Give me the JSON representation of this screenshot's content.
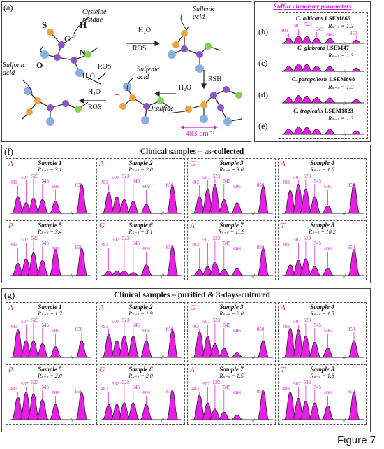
{
  "panel_a": {
    "tag": "(a)",
    "labels": {
      "cysteine": "Cysteine residue",
      "atom_s": "S",
      "atom_h": "H",
      "atom_c": "C",
      "atom_n": "N",
      "atom_o": "O",
      "sulfenic1": "Sulfenic acid",
      "sulfenic2": "Sulfenic acid",
      "sulfonic": "Sulfonic acid",
      "disulfide": "Disulfide",
      "h2o_1": "H₂O",
      "ros_1": "ROS",
      "ros_2": "ROS",
      "h2o_2": "H₂O",
      "h2o_3": "H₂O",
      "ros_3": "ROS",
      "rsh": "RSH",
      "h2o_4": "H₂O",
      "wavenumber": "483 cm⁻¹",
      "minus1": "−",
      "minus2": "−"
    }
  },
  "panel_right": {
    "title": "Sulfur chemistry parameters",
    "species": [
      {
        "tag": "(b)",
        "name_it": "C. albicans",
        "name_rest": " LSEM865",
        "rss": "Rₛ₋ₛ = 1.3"
      },
      {
        "tag": "(c)",
        "name_it": "C. glabrata",
        "name_rest": " LSEM47",
        "rss": "Rₛ₋ₛ = 1.3"
      },
      {
        "tag": "(d)",
        "name_it": "C. parapsilosis",
        "name_rest": " LSEM868",
        "rss": "Rₛ₋ₛ = 1.3"
      },
      {
        "tag": "(e)",
        "name_it": "C. tropicalis",
        "name_rest": " LSEM1823",
        "rss": "Rₛ₋ₛ = 1.3"
      }
    ],
    "peak_labels": [
      "483",
      "507",
      "523",
      "545",
      "606",
      "850"
    ]
  },
  "panel_f": {
    "tag": "(f)",
    "title": "Clinical samples – as-collected",
    "samples": [
      {
        "letter": "A",
        "name": "Sample 1",
        "rss": "Rₛ₋ₛ = 3.1",
        "h": [
          0.55,
          0.35,
          0.5,
          0.45,
          0.4,
          0.95
        ]
      },
      {
        "letter": "A",
        "name": "Sample 2",
        "rss": "Rₛ₋ₛ = 2.0",
        "h": [
          0.7,
          0.55,
          0.45,
          0.4,
          0.3,
          0.9
        ]
      },
      {
        "letter": "G",
        "name": "Sample 3",
        "rss": "Rₛ₋ₛ = 3.8",
        "h": [
          0.55,
          0.8,
          0.95,
          0.45,
          0.35,
          0.9
        ]
      },
      {
        "letter": "A",
        "name": "Sample 4",
        "rss": "Rₛ₋ₛ = 1.6",
        "h": [
          0.75,
          0.95,
          0.8,
          0.55,
          0.25,
          0.95
        ]
      },
      {
        "letter": "P",
        "name": "Sample 5",
        "rss": "Rₛ₋ₛ = 3.4",
        "h": [
          0.4,
          0.55,
          0.75,
          0.5,
          0.85,
          0.9
        ]
      },
      {
        "letter": "G",
        "name": "Sample 6",
        "rss": "Rₛ₋ₛ = 3.1",
        "h": [
          0.15,
          0.15,
          0.15,
          0.1,
          0.35,
          0.95
        ]
      },
      {
        "letter": "A",
        "name": "Sample 7",
        "rss": "Rₛ₋ₛ = 11.9",
        "h": [
          0.2,
          0.3,
          0.45,
          0.2,
          0.25,
          0.9
        ]
      },
      {
        "letter": "T",
        "name": "Sample 8",
        "rss": "Rₛ₋ₛ = 10.2",
        "h": [
          0.35,
          0.5,
          0.55,
          0.3,
          0.25,
          0.85
        ]
      }
    ],
    "peak_labels": [
      "483",
      "507",
      "523",
      "545",
      "606",
      "850"
    ]
  },
  "panel_g": {
    "tag": "(g)",
    "title": "Clinical samples – purified & 3-days-cultured",
    "samples": [
      {
        "letter": "A",
        "name": "Sample 1",
        "rss": "Rₛ₋ₛ = 1.7",
        "h": [
          0.9,
          0.55,
          0.55,
          0.45,
          0.35,
          0.55
        ]
      },
      {
        "letter": "A",
        "name": "Sample 2",
        "rss": "Rₛ₋ₛ = 1.9",
        "h": [
          0.75,
          0.55,
          0.7,
          0.7,
          0.55,
          0.9
        ]
      },
      {
        "letter": "G",
        "name": "Sample 3",
        "rss": "Rₛ₋ₛ = 2.0",
        "h": [
          0.85,
          0.7,
          0.45,
          0.3,
          0.15,
          0.55
        ]
      },
      {
        "letter": "A",
        "name": "Sample 4",
        "rss": "Rₛ₋ₛ = 1.5",
        "h": [
          0.95,
          0.9,
          0.7,
          0.5,
          0.3,
          0.55
        ]
      },
      {
        "letter": "P",
        "name": "Sample 5",
        "rss": "Rₛ₋ₛ = 2.0",
        "h": [
          0.75,
          0.9,
          0.85,
          0.65,
          0.5,
          0.9
        ]
      },
      {
        "letter": "G",
        "name": "Sample 6",
        "rss": "Rₛ₋ₛ = 2.0",
        "h": [
          0.5,
          0.5,
          0.55,
          0.55,
          0.5,
          0.95
        ]
      },
      {
        "letter": "A",
        "name": "Sample 7",
        "rss": "Rₛ₋ₛ = 1.5",
        "h": [
          0.8,
          0.55,
          0.35,
          0.25,
          0.15,
          0.95
        ]
      },
      {
        "letter": "T",
        "name": "Sample 8",
        "rss": "Rₛ₋ₛ = 1.8",
        "h": [
          0.9,
          0.7,
          0.6,
          0.55,
          0.45,
          0.9
        ]
      }
    ],
    "peak_labels": [
      "483",
      "507",
      "523",
      "545",
      "606",
      "850"
    ]
  },
  "caption": "Figure 7",
  "colors": {
    "magenta": "#d21bd2",
    "peak_fill": "#e61ee6",
    "orange": "#f5a040",
    "blue": "#8aaee0",
    "purple": "#8a55c5",
    "green": "#7ed257",
    "gray": "#8c8c8c",
    "red_letter": "#e0303a"
  }
}
